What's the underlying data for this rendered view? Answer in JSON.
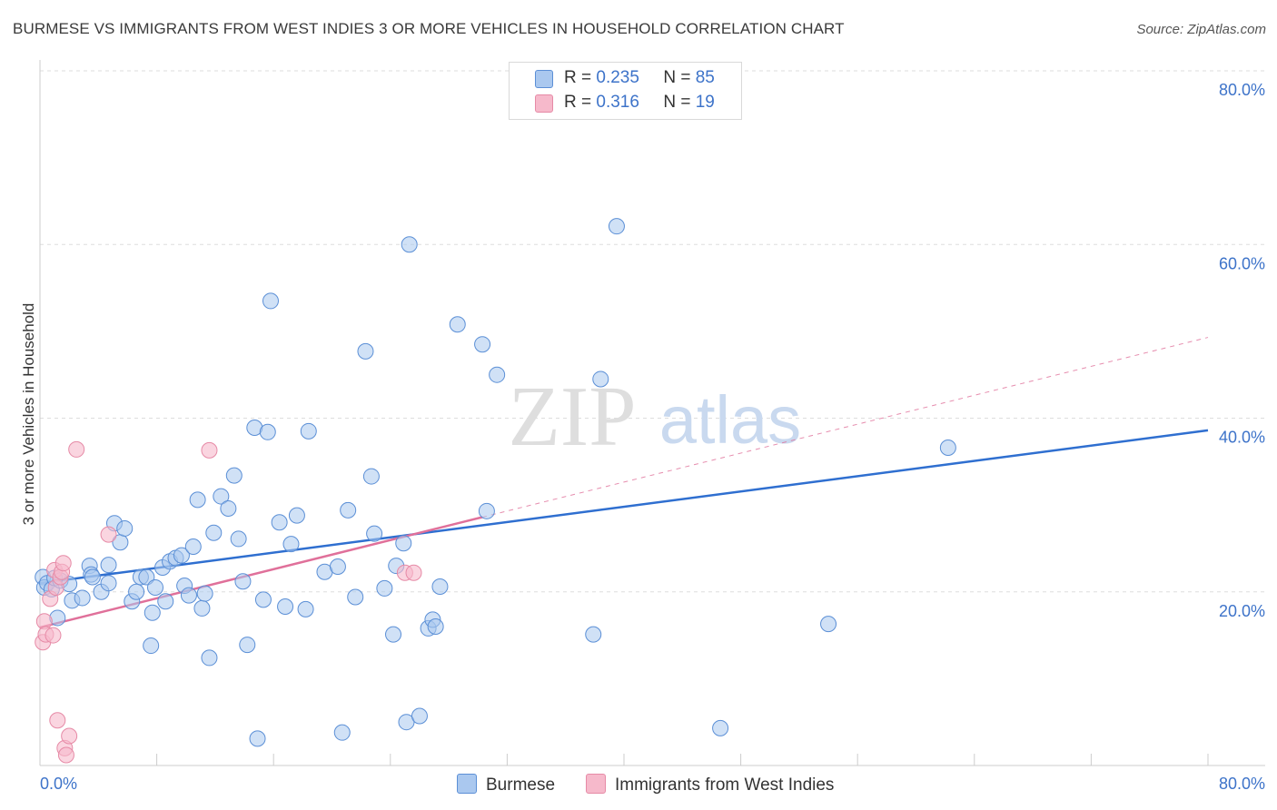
{
  "title": "BURMESE VS IMMIGRANTS FROM WEST INDIES 3 OR MORE VEHICLES IN HOUSEHOLD CORRELATION CHART",
  "source": "Source: ZipAtlas.com",
  "watermark": {
    "zip": "ZIP",
    "atlas": "atlas"
  },
  "legend": {
    "rows": [
      {
        "r_label": "R =",
        "r_value": "0.235",
        "n_label": "N =",
        "n_value": "85"
      },
      {
        "r_label": "R =",
        "r_value": "0.316",
        "n_label": "N =",
        "n_value": "19"
      }
    ]
  },
  "colors": {
    "burmese_fill": "#aac8ef",
    "burmese_stroke": "#5b8fd6",
    "burmese_line": "#2f6fd0",
    "wi_fill": "#f6b9cb",
    "wi_stroke": "#e68aa6",
    "wi_line": "#e0709a",
    "tick_text": "#3d73c9",
    "grid": "#dddddd"
  },
  "chart_data": {
    "type": "scatter",
    "title": "BURMESE VS IMMIGRANTS FROM WEST INDIES 3 OR MORE VEHICLES IN HOUSEHOLD CORRELATION CHART",
    "xlabel": "",
    "ylabel": "3 or more Vehicles in Household",
    "xlim": [
      0,
      80
    ],
    "ylim": [
      0,
      80
    ],
    "x_tick_labels": [
      "0.0%",
      "80.0%"
    ],
    "y_ticks": [
      20,
      40,
      60,
      80
    ],
    "y_tick_labels": [
      "20.0%",
      "40.0%",
      "60.0%",
      "80.0%"
    ],
    "grid": true,
    "legend_position": "bottom",
    "series": [
      {
        "name": "Burmese",
        "r": 0.235,
        "n": 85,
        "points": [
          [
            0.2,
            21.7
          ],
          [
            0.3,
            20.5
          ],
          [
            0.5,
            21.0
          ],
          [
            0.8,
            20.3
          ],
          [
            1.0,
            21.6
          ],
          [
            1.4,
            21.3
          ],
          [
            1.2,
            17.0
          ],
          [
            2.0,
            20.9
          ],
          [
            2.2,
            19.0
          ],
          [
            2.9,
            19.3
          ],
          [
            3.4,
            23.0
          ],
          [
            3.5,
            22.0
          ],
          [
            3.6,
            21.7
          ],
          [
            4.2,
            20.0
          ],
          [
            4.7,
            23.1
          ],
          [
            4.7,
            21.0
          ],
          [
            5.1,
            27.9
          ],
          [
            5.5,
            25.7
          ],
          [
            5.8,
            27.3
          ],
          [
            6.3,
            18.9
          ],
          [
            6.6,
            20.0
          ],
          [
            6.9,
            21.7
          ],
          [
            7.3,
            21.7
          ],
          [
            7.6,
            13.8
          ],
          [
            7.7,
            17.6
          ],
          [
            7.9,
            20.5
          ],
          [
            8.4,
            22.8
          ],
          [
            8.6,
            18.9
          ],
          [
            8.9,
            23.5
          ],
          [
            9.3,
            23.9
          ],
          [
            9.7,
            24.2
          ],
          [
            9.9,
            20.7
          ],
          [
            10.2,
            19.6
          ],
          [
            10.5,
            25.2
          ],
          [
            10.8,
            30.6
          ],
          [
            11.1,
            18.1
          ],
          [
            11.3,
            19.8
          ],
          [
            11.6,
            12.4
          ],
          [
            11.9,
            26.8
          ],
          [
            12.4,
            31.0
          ],
          [
            12.9,
            29.6
          ],
          [
            13.3,
            33.4
          ],
          [
            13.6,
            26.1
          ],
          [
            13.9,
            21.2
          ],
          [
            14.2,
            13.9
          ],
          [
            14.7,
            38.9
          ],
          [
            14.9,
            3.1
          ],
          [
            15.3,
            19.1
          ],
          [
            15.6,
            38.4
          ],
          [
            15.8,
            53.5
          ],
          [
            16.4,
            28.0
          ],
          [
            16.8,
            18.3
          ],
          [
            17.2,
            25.5
          ],
          [
            17.6,
            28.8
          ],
          [
            18.2,
            18.0
          ],
          [
            18.4,
            38.5
          ],
          [
            19.5,
            22.3
          ],
          [
            20.4,
            22.9
          ],
          [
            20.7,
            3.8
          ],
          [
            21.1,
            29.4
          ],
          [
            21.6,
            19.4
          ],
          [
            22.3,
            47.7
          ],
          [
            22.7,
            33.3
          ],
          [
            22.9,
            26.7
          ],
          [
            23.6,
            20.4
          ],
          [
            24.2,
            15.1
          ],
          [
            24.4,
            23.0
          ],
          [
            24.9,
            25.6
          ],
          [
            25.1,
            5.0
          ],
          [
            25.3,
            60.0
          ],
          [
            26.0,
            5.7
          ],
          [
            26.6,
            15.8
          ],
          [
            26.9,
            16.8
          ],
          [
            27.1,
            16.0
          ],
          [
            27.4,
            20.6
          ],
          [
            28.6,
            50.8
          ],
          [
            30.3,
            48.5
          ],
          [
            30.6,
            29.3
          ],
          [
            31.3,
            45.0
          ],
          [
            37.9,
            15.1
          ],
          [
            38.4,
            44.5
          ],
          [
            39.5,
            62.1
          ],
          [
            46.6,
            4.3
          ],
          [
            54.0,
            16.3
          ],
          [
            62.2,
            36.6
          ]
        ],
        "trendline": {
          "x": [
            0,
            80
          ],
          "y": [
            21.0,
            38.6
          ]
        }
      },
      {
        "name": "Immigrants from West Indies",
        "r": 0.316,
        "n": 19,
        "points": [
          [
            0.2,
            14.2
          ],
          [
            0.3,
            16.6
          ],
          [
            0.4,
            15.1
          ],
          [
            0.7,
            19.2
          ],
          [
            1.0,
            22.5
          ],
          [
            1.1,
            20.5
          ],
          [
            1.2,
            5.2
          ],
          [
            1.4,
            21.7
          ],
          [
            1.5,
            22.3
          ],
          [
            1.6,
            23.3
          ],
          [
            1.7,
            2.0
          ],
          [
            1.8,
            1.2
          ],
          [
            2.0,
            3.4
          ],
          [
            2.5,
            36.4
          ],
          [
            4.7,
            26.6
          ],
          [
            11.6,
            36.3
          ],
          [
            25.0,
            22.2
          ],
          [
            25.6,
            22.2
          ],
          [
            0.9,
            15.0
          ]
        ],
        "trendline": {
          "x": [
            0,
            30.3
          ],
          "y": [
            15.9,
            28.6
          ]
        },
        "trendline_extension": {
          "x": [
            30.3,
            80
          ],
          "y": [
            28.6,
            49.3
          ]
        }
      }
    ]
  },
  "bottom_legend": [
    "Burmese",
    "Immigrants from West Indies"
  ]
}
